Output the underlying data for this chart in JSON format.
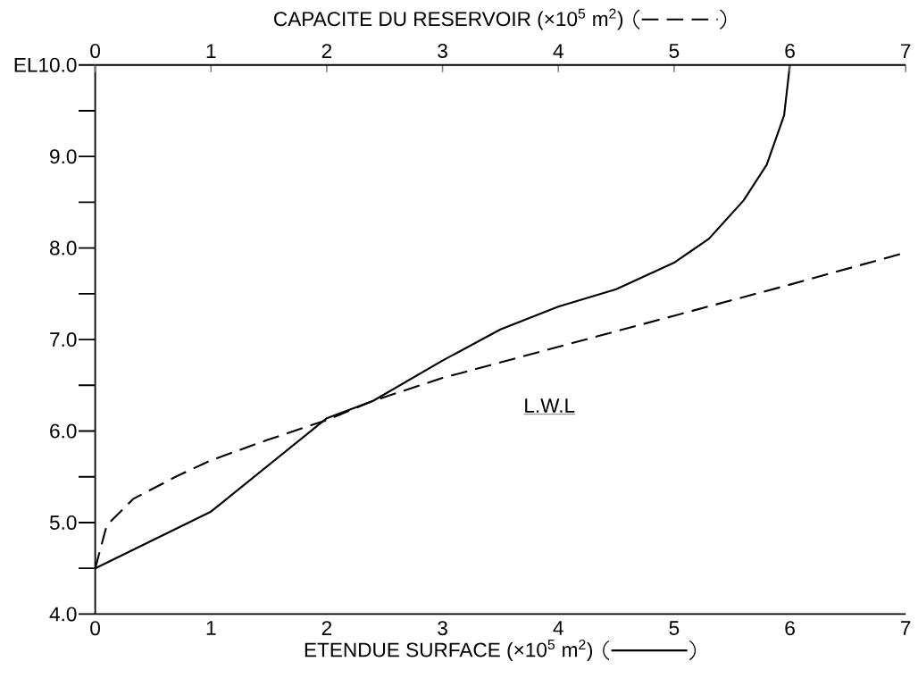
{
  "chart_data": {
    "type": "line",
    "xlabel": "ETENDUE SURFACE (×10$^{5}$ m$^{2}$)",
    "x2label": "CAPACITE DU RESERVOIR (×10$^{5}$ m$^{2}$)",
    "annotations": [
      "L.W.L"
    ],
    "xlim": [
      0,
      7
    ],
    "xticks": [
      0,
      1,
      2,
      3,
      4,
      5,
      6,
      7
    ],
    "x2lim": [
      0,
      7
    ],
    "x2ticks": [
      0,
      1,
      2,
      3,
      4,
      5,
      6,
      7
    ],
    "ylim": [
      4,
      10
    ],
    "yticks": [
      {
        "value": 4,
        "label": "4.0"
      },
      {
        "value": 5,
        "label": "5.0"
      },
      {
        "value": 6,
        "label": "6.0"
      },
      {
        "value": 7,
        "label": "7.0"
      },
      {
        "value": 8,
        "label": "8.0"
      },
      {
        "value": 9,
        "label": "9.0"
      },
      {
        "value": 10,
        "label": "EL10.0"
      }
    ],
    "grid": false,
    "marker": "none",
    "series": [
      {
        "color": "#000000",
        "line_style": "solid",
        "x": [
          0,
          1,
          2,
          2.4,
          3,
          3.5,
          4,
          4.5,
          5,
          5.3,
          5.6,
          5.8,
          5.95,
          6
        ],
        "values": [
          4.5,
          5.12,
          6.14,
          6.33,
          6.77,
          7.11,
          7.36,
          7.55,
          7.84,
          8.1,
          8.52,
          8.91,
          9.45,
          10
        ]
      },
      {
        "color": "#000000",
        "line_style": "dashed",
        "axis": "x2",
        "x": [
          0,
          0.1,
          0.33,
          0.71,
          1,
          1.48,
          2,
          2.4,
          3,
          4,
          5,
          6,
          7
        ],
        "values": [
          4.5,
          4.97,
          5.26,
          5.51,
          5.68,
          5.9,
          6.12,
          6.33,
          6.58,
          6.92,
          7.26,
          7.6,
          7.95
        ]
      }
    ]
  }
}
